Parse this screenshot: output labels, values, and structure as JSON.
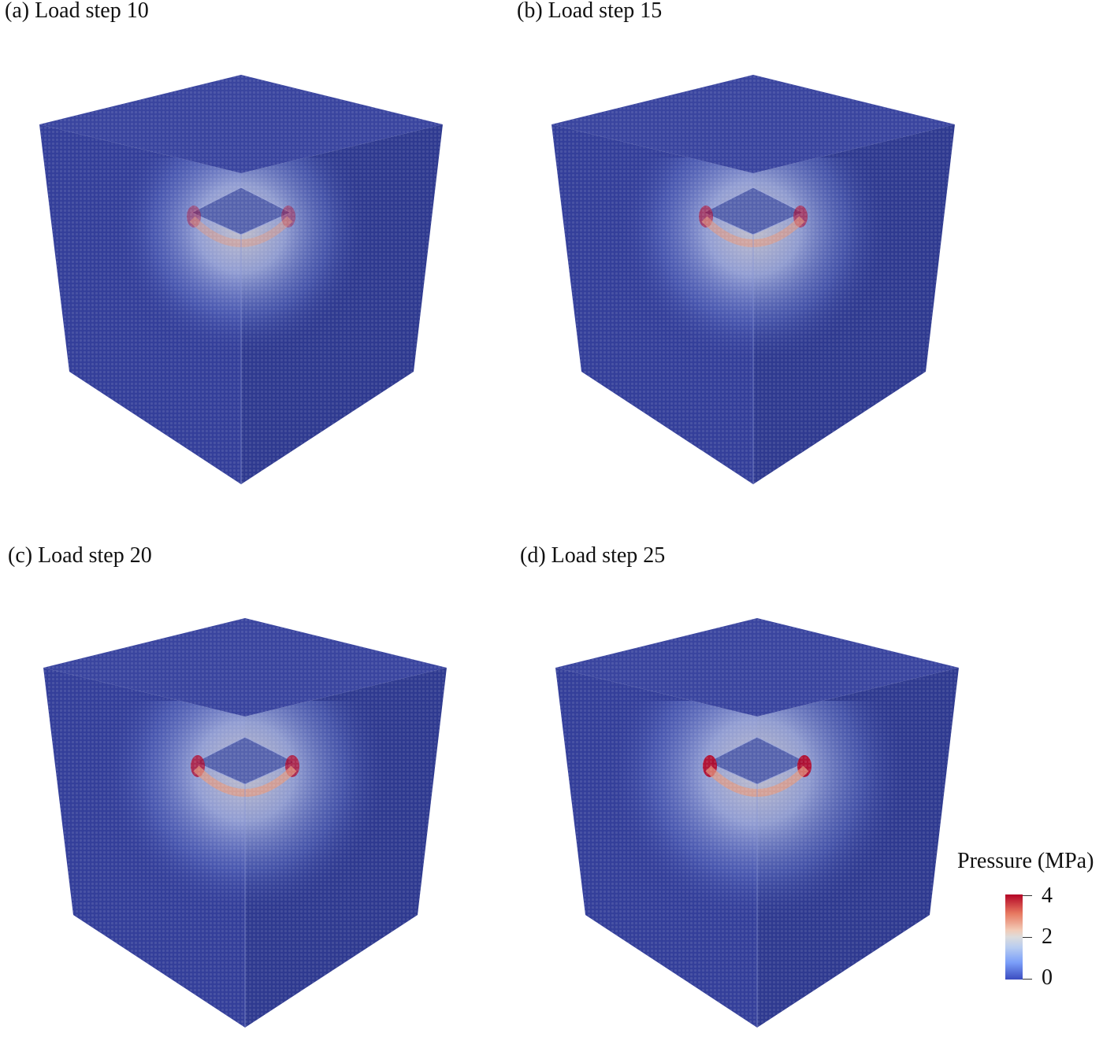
{
  "panels": [
    {
      "caption": "(a) Load step 10",
      "step": 10
    },
    {
      "caption": "(b) Load step 15",
      "step": 15
    },
    {
      "caption": "(c) Load step 20",
      "step": 20
    },
    {
      "caption": "(d) Load step 25",
      "step": 25
    }
  ],
  "legend": {
    "title": "Pressure (MPa)",
    "ticks": [
      "4",
      "2",
      "0"
    ],
    "colormap": {
      "low": "#3b4cc0",
      "mid": "#dddddd",
      "high": "#b40426"
    }
  },
  "colors": {
    "cube_base": "#343f9a",
    "cube_top": "#3a459f",
    "cube_side_dark": "#2f3a90"
  }
}
